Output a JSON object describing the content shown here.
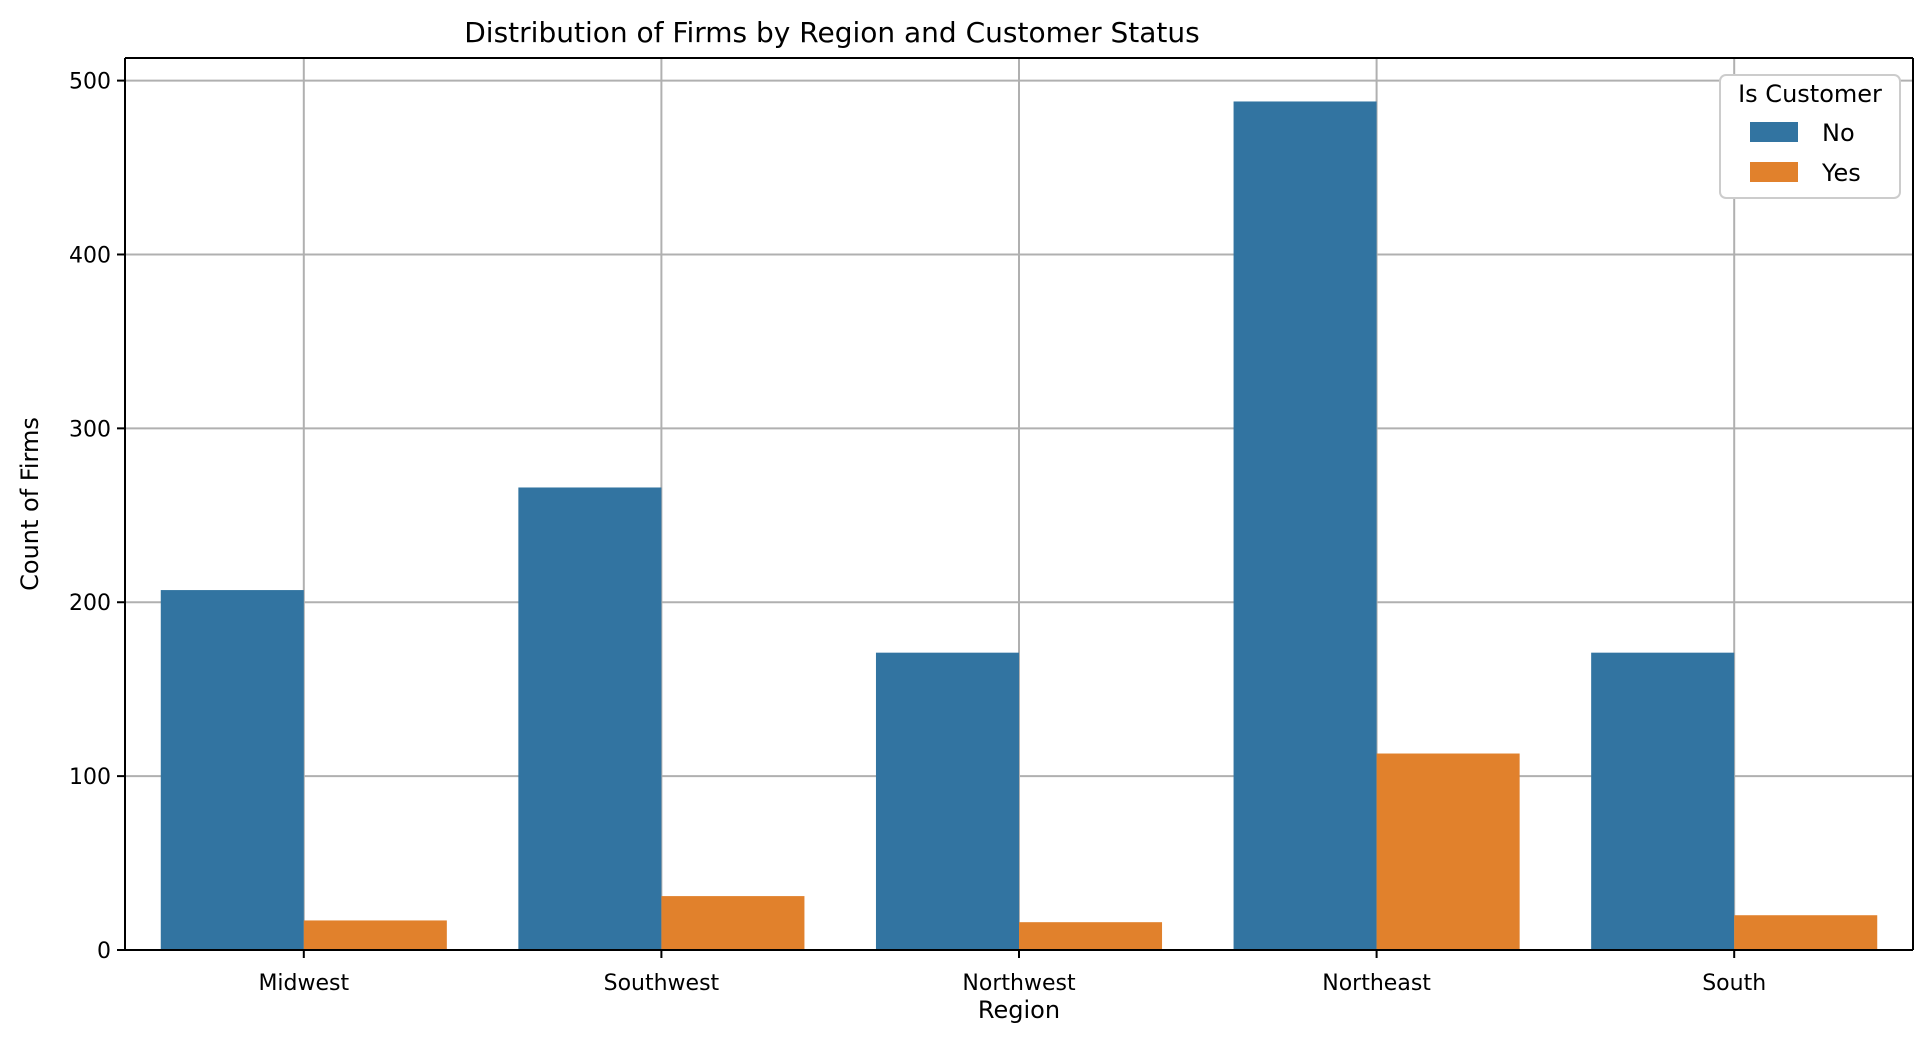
{
  "chart_data": {
    "type": "bar",
    "title": "Distribution of Firms by Region and Customer Status",
    "xlabel": "Region",
    "ylabel": "Count of Firms",
    "categories": [
      "Midwest",
      "Southwest",
      "Northwest",
      "Northeast",
      "South"
    ],
    "series": [
      {
        "name": "No",
        "values": [
          207,
          266,
          171,
          488,
          171
        ],
        "color": "#3274a1"
      },
      {
        "name": "Yes",
        "values": [
          17,
          31,
          16,
          113,
          20
        ],
        "color": "#e1812c"
      }
    ],
    "ylim": [
      0,
      513
    ],
    "yticks": [
      0,
      100,
      200,
      300,
      400,
      500
    ],
    "grid": true,
    "legend": {
      "title": "Is Customer",
      "placement": "top-right"
    }
  }
}
